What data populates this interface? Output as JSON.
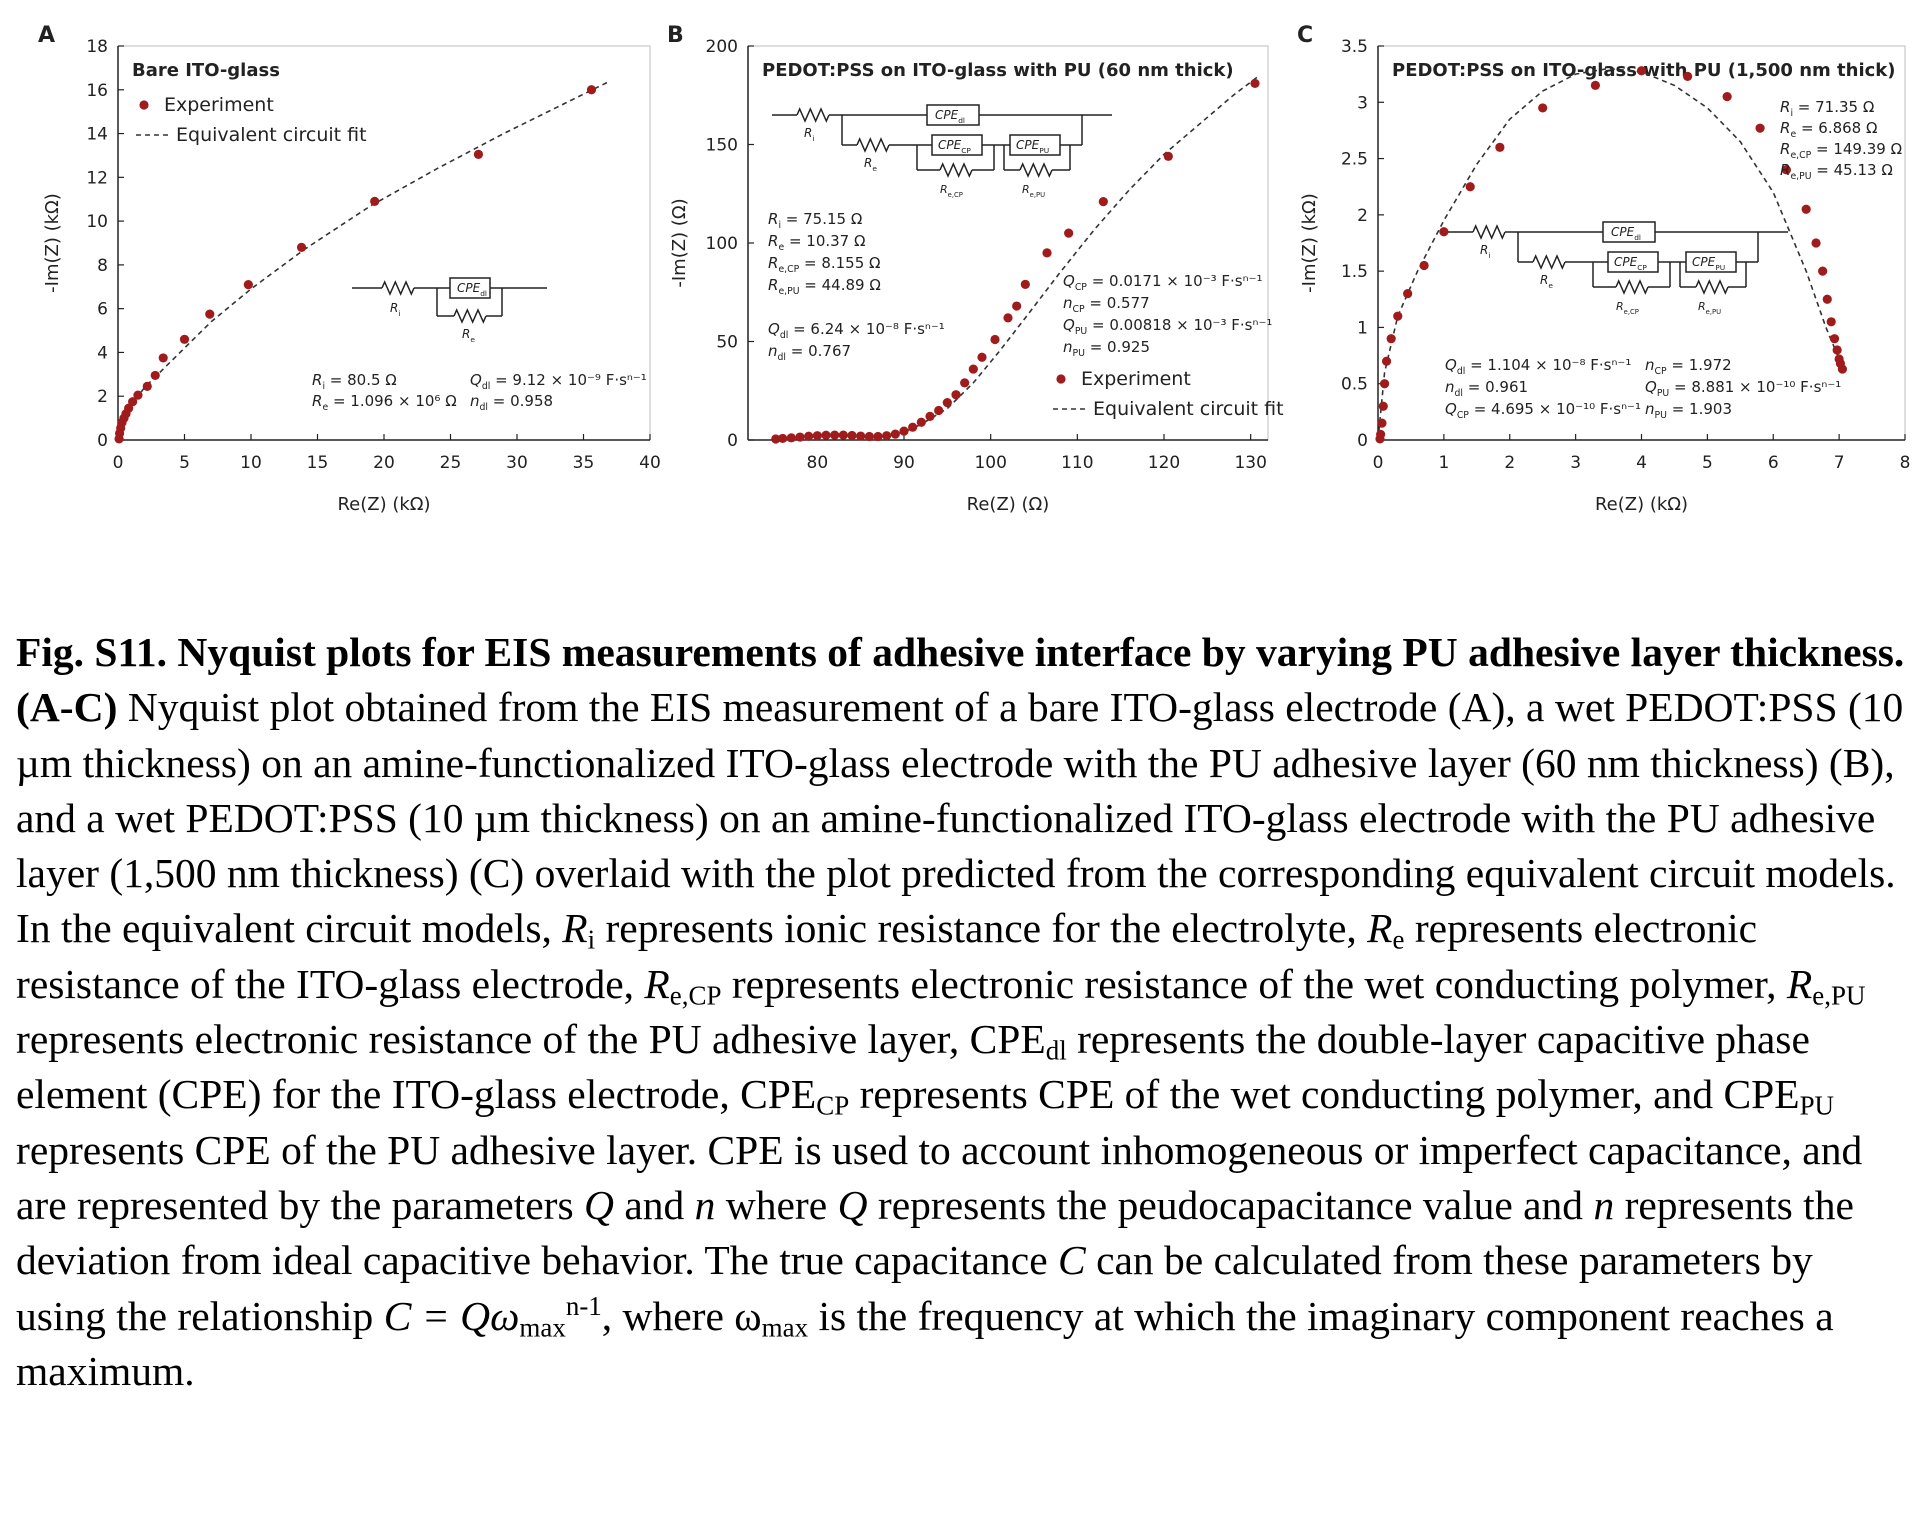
{
  "colors": {
    "marker": "#a01c1c",
    "fit_line": "#333333",
    "axis": "#222222"
  },
  "chart_data": [
    {
      "type": "scatter",
      "panel": "A",
      "title": "Bare ITO-glass",
      "xlabel": "Re(Z) (kΩ)",
      "ylabel": "-Im(Z) (kΩ)",
      "xlim": [
        0,
        40
      ],
      "ylim": [
        0,
        18
      ],
      "xticks": [
        0,
        5,
        10,
        15,
        20,
        25,
        30,
        35,
        40
      ],
      "yticks": [
        0,
        2,
        4,
        6,
        8,
        10,
        12,
        14,
        16,
        18
      ],
      "legend": [
        "Experiment",
        "Equivalent circuit fit"
      ],
      "legend_position": "top-left",
      "series": [
        {
          "name": "Experiment",
          "x": [
            0.08,
            0.12,
            0.2,
            0.3,
            0.45,
            0.6,
            0.8,
            1.1,
            1.5,
            2.2,
            2.8,
            3.4,
            5,
            6.9,
            9.8,
            13.8,
            19.3,
            27.1,
            35.6
          ],
          "y": [
            0.05,
            0.3,
            0.55,
            0.8,
            1.0,
            1.2,
            1.45,
            1.75,
            2.05,
            2.45,
            2.95,
            3.75,
            4.6,
            5.75,
            7.1,
            8.8,
            10.9,
            13.05,
            16.0
          ]
        },
        {
          "name": "Equivalent circuit fit",
          "x": [
            0,
            0.5,
            1,
            2,
            3,
            5,
            7,
            10,
            14,
            19,
            24,
            29,
            33,
            37
          ],
          "y": [
            0,
            1.0,
            1.6,
            2.4,
            3.0,
            4.2,
            5.4,
            6.9,
            8.7,
            10.7,
            12.4,
            14.0,
            15.2,
            16.4
          ]
        }
      ],
      "circuit": {
        "labels": [
          "CPE",
          "dl",
          "R",
          "i",
          "R",
          "e"
        ]
      },
      "params": [
        {
          "sym": "R",
          "sub": "i",
          "val": "= 80.5 Ω"
        },
        {
          "sym": "R",
          "sub": "e",
          "val": "= 1.096 × 10⁶ Ω"
        },
        {
          "sym": "Q",
          "sub": "dl",
          "val": "= 9.12 × 10⁻⁹ F·sⁿ⁻¹"
        },
        {
          "sym": "n",
          "sub": "dl",
          "val": "= 0.958"
        }
      ]
    },
    {
      "type": "scatter",
      "panel": "B",
      "title": "PEDOT:PSS on ITO-glass with PU (60 nm thick)",
      "xlabel": "Re(Z) (Ω)",
      "ylabel": "-Im(Z) (Ω)",
      "xlim": [
        72,
        132
      ],
      "ylim": [
        0,
        200
      ],
      "xticks": [
        80,
        90,
        100,
        110,
        120,
        130
      ],
      "yticks": [
        0,
        50,
        100,
        150,
        200
      ],
      "legend": [
        "Experiment",
        "Equivalent circuit fit"
      ],
      "legend_position": "bottom-right",
      "series": [
        {
          "name": "Experiment",
          "x": [
            75.2,
            76,
            77,
            78,
            79,
            80,
            81,
            82,
            83,
            84,
            85,
            86,
            87,
            88,
            89,
            90,
            91,
            92,
            93,
            94,
            95,
            96,
            97,
            98,
            99,
            100.5,
            102,
            103,
            104,
            106.5,
            109,
            113,
            120.5,
            130.5
          ],
          "y": [
            0.5,
            0.8,
            1.1,
            1.5,
            1.9,
            2.2,
            2.4,
            2.5,
            2.5,
            2.3,
            2.0,
            1.8,
            1.8,
            2.2,
            3.0,
            4.5,
            6.5,
            9,
            12,
            15,
            19,
            23,
            29,
            36,
            42,
            51,
            62,
            68,
            79,
            95,
            105,
            121,
            144,
            181
          ]
        },
        {
          "name": "Equivalent circuit fit",
          "x": [
            75,
            78,
            81,
            84,
            86,
            88,
            90,
            92,
            95,
            98,
            101,
            104,
            108,
            112,
            116,
            120,
            124,
            128,
            131
          ],
          "y": [
            0.5,
            1.6,
            2.3,
            2.2,
            1.9,
            2.2,
            4.0,
            8,
            16,
            29,
            45,
            62,
            85,
            107,
            127,
            145,
            160,
            175,
            185
          ]
        }
      ],
      "circuit": {
        "labels": [
          "CPE",
          "dl",
          "CPE",
          "CP",
          "CPE",
          "PU",
          "R",
          "i",
          "R",
          "e",
          "R",
          "e,CP",
          "R",
          "e,PU"
        ]
      },
      "params": [
        {
          "sym": "R",
          "sub": "i",
          "val": "= 75.15 Ω"
        },
        {
          "sym": "R",
          "sub": "e",
          "val": "= 10.37 Ω"
        },
        {
          "sym": "R",
          "sub": "e,CP",
          "val": "= 8.155 Ω"
        },
        {
          "sym": "R",
          "sub": "e,PU",
          "val": "= 44.89 Ω"
        },
        {
          "sym": "Q",
          "sub": "dl",
          "val": "= 6.24 × 10⁻⁸ F·sⁿ⁻¹"
        },
        {
          "sym": "n",
          "sub": "dl",
          "val": "= 0.767"
        },
        {
          "sym": "Q",
          "sub": "CP",
          "val": "= 0.0171 × 10⁻³ F·sⁿ⁻¹"
        },
        {
          "sym": "n",
          "sub": "CP",
          "val": "= 0.577"
        },
        {
          "sym": "Q",
          "sub": "PU",
          "val": "= 0.00818 × 10⁻³ F·sⁿ⁻¹"
        },
        {
          "sym": "n",
          "sub": "PU",
          "val": "= 0.925"
        }
      ]
    },
    {
      "type": "scatter",
      "panel": "C",
      "title": "PEDOT:PSS on ITO-glass with PU (1,500 nm thick)",
      "xlabel": "Re(Z) (kΩ)",
      "ylabel": "-Im(Z) (kΩ)",
      "xlim": [
        0,
        8
      ],
      "ylim": [
        0,
        3.5
      ],
      "xticks": [
        0,
        1,
        2,
        3,
        4,
        5,
        6,
        7,
        8
      ],
      "yticks": [
        0,
        0.5,
        1,
        1.5,
        2,
        2.5,
        3,
        3.5
      ],
      "legend": [],
      "series": [
        {
          "name": "Experiment",
          "x": [
            0.03,
            0.04,
            0.06,
            0.08,
            0.1,
            0.13,
            0.2,
            0.3,
            0.45,
            0.7,
            1.0,
            1.4,
            1.85,
            2.5,
            3.3,
            4.0,
            4.7,
            5.3,
            5.8,
            6.2,
            6.5,
            6.65,
            6.75,
            6.82,
            6.88,
            6.93,
            6.97,
            7.0,
            7.02,
            7.05
          ],
          "y": [
            0.01,
            0.05,
            0.15,
            0.3,
            0.5,
            0.7,
            0.9,
            1.1,
            1.3,
            1.55,
            1.85,
            2.25,
            2.6,
            2.95,
            3.15,
            3.28,
            3.23,
            3.05,
            2.77,
            2.4,
            2.05,
            1.75,
            1.5,
            1.25,
            1.05,
            0.9,
            0.8,
            0.72,
            0.68,
            0.63
          ]
        },
        {
          "name": "Equivalent circuit fit",
          "x": [
            0,
            0.1,
            0.3,
            0.6,
            1.0,
            1.5,
            2,
            2.5,
            3,
            3.5,
            4,
            4.5,
            5,
            5.5,
            6,
            6.5,
            6.8,
            7.0,
            7.05
          ],
          "y": [
            0,
            0.6,
            1.1,
            1.5,
            1.95,
            2.45,
            2.85,
            3.1,
            3.25,
            3.3,
            3.27,
            3.15,
            2.95,
            2.65,
            2.2,
            1.5,
            1.0,
            0.72,
            0.62
          ]
        }
      ],
      "circuit": {
        "labels": [
          "CPE",
          "dl",
          "CPE",
          "CP",
          "CPE",
          "PU",
          "R",
          "i",
          "R",
          "e",
          "R",
          "e,CP",
          "R",
          "e,PU"
        ]
      },
      "params_top": [
        {
          "sym": "R",
          "sub": "i",
          "val": "= 71.35 Ω"
        },
        {
          "sym": "R",
          "sub": "e",
          "val": "= 6.868 Ω"
        },
        {
          "sym": "R",
          "sub": "e,CP",
          "val": "= 149.39 Ω"
        },
        {
          "sym": "R",
          "sub": "e,PU",
          "val": "= 45.13 Ω"
        }
      ],
      "params": [
        {
          "sym": "Q",
          "sub": "dl",
          "val": "= 1.104 × 10⁻⁸ F·sⁿ⁻¹"
        },
        {
          "sym": "n",
          "sub": "dl",
          "val": "= 0.961"
        },
        {
          "sym": "Q",
          "sub": "CP",
          "val": "= 4.695 × 10⁻¹⁰ F·sⁿ⁻¹"
        },
        {
          "sym": "n",
          "sub": "CP",
          "val": "= 1.972"
        },
        {
          "sym": "Q",
          "sub": "PU",
          "val": "= 8.881 × 10⁻¹⁰ F·sⁿ⁻¹"
        },
        {
          "sym": "n",
          "sub": "PU",
          "val": "= 1.903"
        }
      ]
    }
  ],
  "caption": {
    "title": "Fig. S11. Nyquist plots for EIS measurements of adhesive interface by varying PU adhesive layer thickness.",
    "panels": "(A-C)",
    "t1": " Nyquist plot obtained from the EIS measurement of a bare ITO-glass electrode (A), a wet PEDOT:PSS (10 µm thickness) on an amine-functionalized ITO-glass electrode with the PU adhesive layer (60 nm thickness) (B), and a wet PEDOT:PSS (10 µm thickness) on an amine-functionalized ITO-glass electrode with the PU adhesive layer (1,500 nm thickness) (C) overlaid with the plot predicted from the corresponding equivalent circuit models. In the equivalent circuit models, ",
    "Ri": "R",
    "Ri_sub": "i",
    "t2": " represents ionic resistance for the electrolyte, ",
    "Re": "R",
    "Re_sub": "e",
    "t3": " represents electronic resistance of the ITO-glass electrode, ",
    "Recp": "R",
    "Recp_sub": "e,CP",
    "t4": " represents electronic resistance of the wet conducting polymer, ",
    "Repu": "R",
    "Repu_sub": "e,PU",
    "t5": " represents electronic resistance of the PU adhesive layer, CPE",
    "dl_sub": "dl",
    "t6": " represents the double-layer capacitive phase element (CPE) for the ITO-glass electrode, CPE",
    "cp_sub": "CP",
    "t7": " represents CPE of the wet conducting polymer, and CPE",
    "pu_sub": "PU",
    "t8": " represents CPE of the PU adhesive layer. CPE is used to account inhomogeneous or imperfect capacitance, and are represented by the parameters ",
    "Q1": "Q",
    "t9": " and ",
    "n1": "n",
    "t10": " where ",
    "Q2": "Q",
    "t11": " represents the peudocapacitance value and ",
    "n2": "n",
    "t12": " represents the deviation from ideal capacitive behavior. The true capacitance ",
    "C1": "C",
    "t13": " can be calculated from these parameters by using the relationship ",
    "eq": "C = Qω",
    "max_sub": "max",
    "exp_sup": "n-1",
    "t14": ", where ω",
    "max_sub2": "max",
    "t15": " is the frequency at which the imaginary component reaches a maximum."
  }
}
